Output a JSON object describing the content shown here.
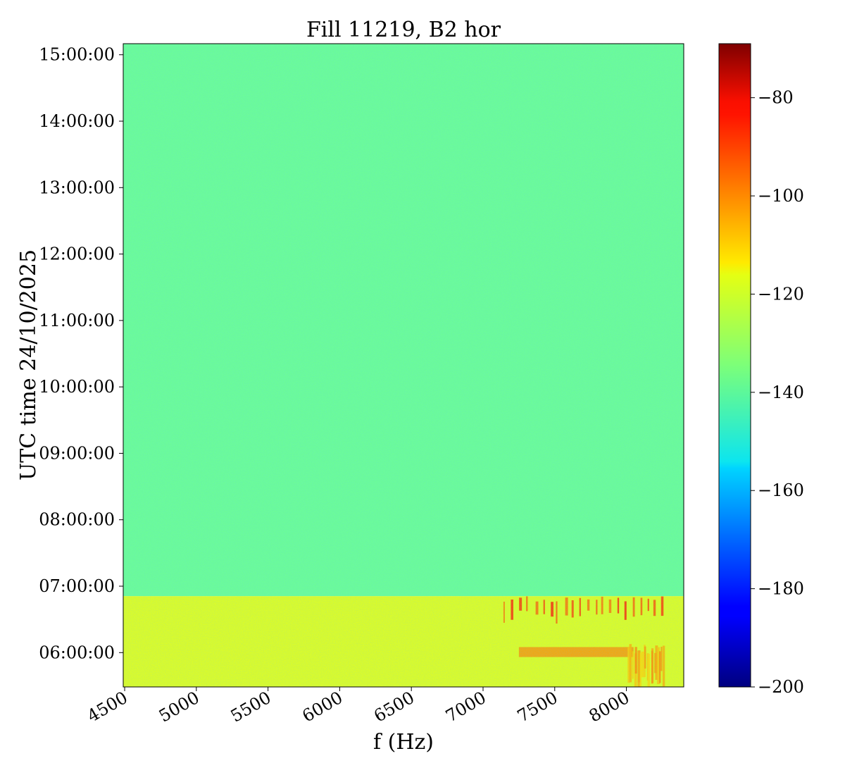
{
  "chart_data": {
    "type": "heatmap",
    "title": "Fill 11219, B2 hor",
    "xlabel": "f (Hz)",
    "ylabel": "UTC time 24/10/2025",
    "xlim": [
      4490,
      8400
    ],
    "x_ticks": [
      4500,
      5000,
      5500,
      6000,
      6500,
      7000,
      7500,
      8000
    ],
    "x_tick_labels": [
      "4500",
      "5000",
      "5500",
      "6000",
      "6500",
      "7000",
      "7500",
      "8000"
    ],
    "ylim": [
      "05:29:00",
      "15:10:00"
    ],
    "y_ticks": [
      "06:00:00",
      "07:00:00",
      "08:00:00",
      "09:00:00",
      "10:00:00",
      "11:00:00",
      "12:00:00",
      "13:00:00",
      "14:00:00",
      "15:00:00"
    ],
    "y_tick_labels": [
      "06:00:00",
      "07:00:00",
      "08:00:00",
      "09:00:00",
      "10:00:00",
      "11:00:00",
      "12:00:00",
      "13:00:00",
      "14:00:00",
      "15:00:00"
    ],
    "colormap": "jet",
    "colorbar": {
      "range": [
        -200,
        -69
      ],
      "ticks": [
        -80,
        -100,
        -120,
        -140,
        -160,
        -180,
        -200
      ],
      "tick_labels": [
        "−80",
        "−100",
        "−120",
        "−140",
        "−160",
        "−180",
        "−200"
      ]
    },
    "regions": [
      {
        "time_start": "06:51:00",
        "time_end": "15:10:00",
        "f_start": 4490,
        "f_end": 8400,
        "level": -137
      },
      {
        "time_start": "05:29:00",
        "time_end": "06:51:00",
        "f_start": 4490,
        "f_end": 8400,
        "level": -122
      }
    ],
    "features": [
      {
        "kind": "vertical_lines",
        "time_start": "06:30:00",
        "time_end": "06:51:00",
        "f_start": 7150,
        "f_end": 8250,
        "level": -96
      },
      {
        "kind": "band",
        "time_start": "05:56:00",
        "time_end": "06:05:00",
        "f_start": 7250,
        "f_end": 8050,
        "level": -103
      },
      {
        "kind": "vertical_lines",
        "time_start": "05:29:00",
        "time_end": "06:08:00",
        "f_start": 8000,
        "f_end": 8250,
        "level": -108
      }
    ]
  }
}
